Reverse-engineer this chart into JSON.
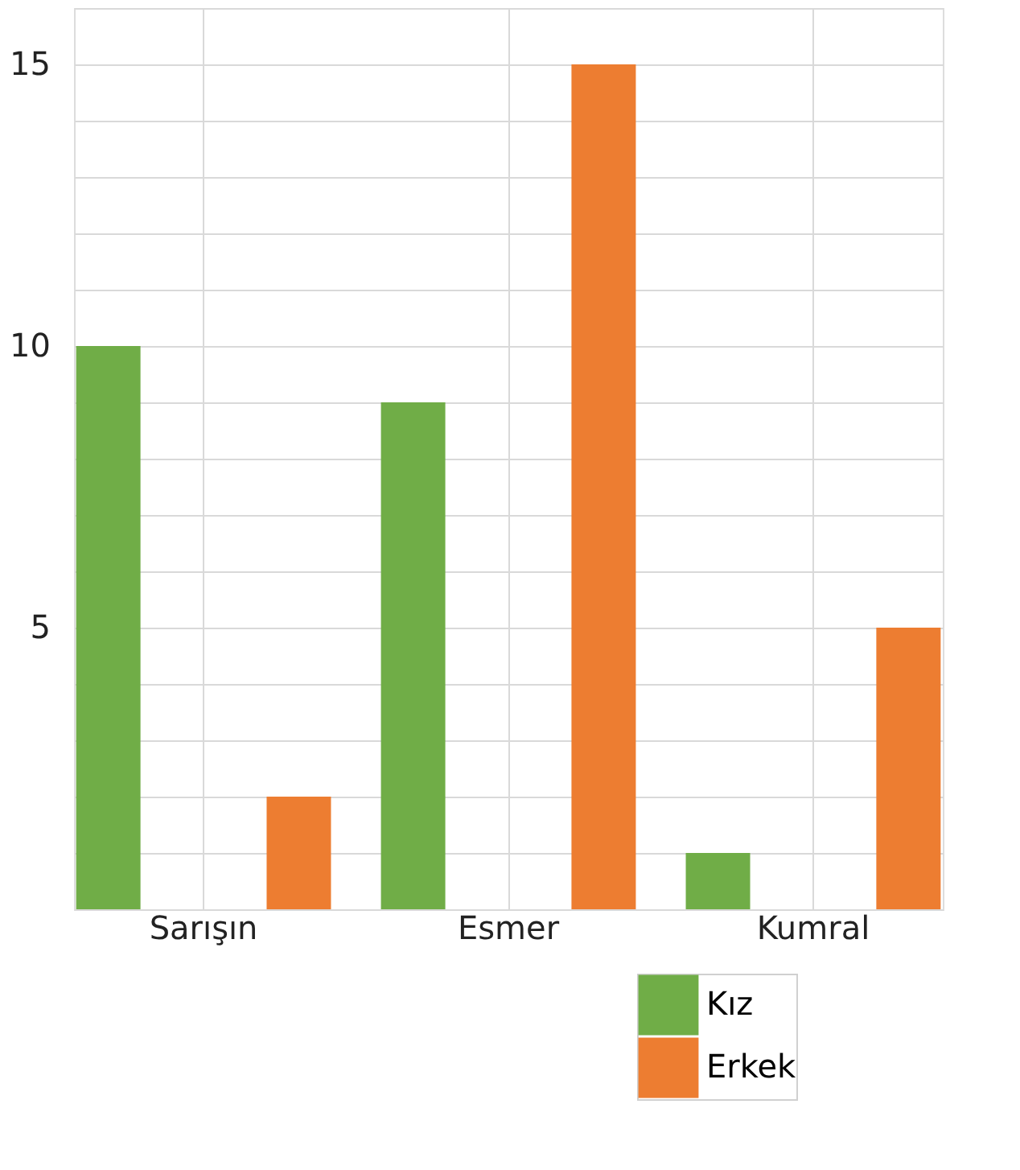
{
  "chart_data": {
    "type": "bar",
    "categories": [
      "Sarışın",
      "Esmer",
      "Kumral"
    ],
    "series": [
      {
        "name": "Kız",
        "color": "#70ad47",
        "values": [
          10,
          9,
          1
        ]
      },
      {
        "name": "Erkek",
        "color": "#ed7d31",
        "values": [
          2,
          15,
          5
        ]
      }
    ],
    "ylim": [
      0,
      16
    ],
    "yticks": [
      {
        "value": 0,
        "label": null
      },
      {
        "value": 1,
        "label": null
      },
      {
        "value": 2,
        "label": null
      },
      {
        "value": 3,
        "label": null
      },
      {
        "value": 4,
        "label": null
      },
      5,
      {
        "value": 6,
        "label": null
      },
      {
        "value": 7,
        "label": null
      },
      {
        "value": 8,
        "label": null
      },
      {
        "value": 9,
        "label": null
      },
      10,
      {
        "value": 11,
        "label": null
      },
      {
        "value": 12,
        "label": null
      },
      {
        "value": 13,
        "label": null
      },
      {
        "value": 14,
        "label": null
      },
      15,
      {
        "value": 16,
        "label": null
      }
    ],
    "grid": true,
    "legend": "bottom right"
  }
}
